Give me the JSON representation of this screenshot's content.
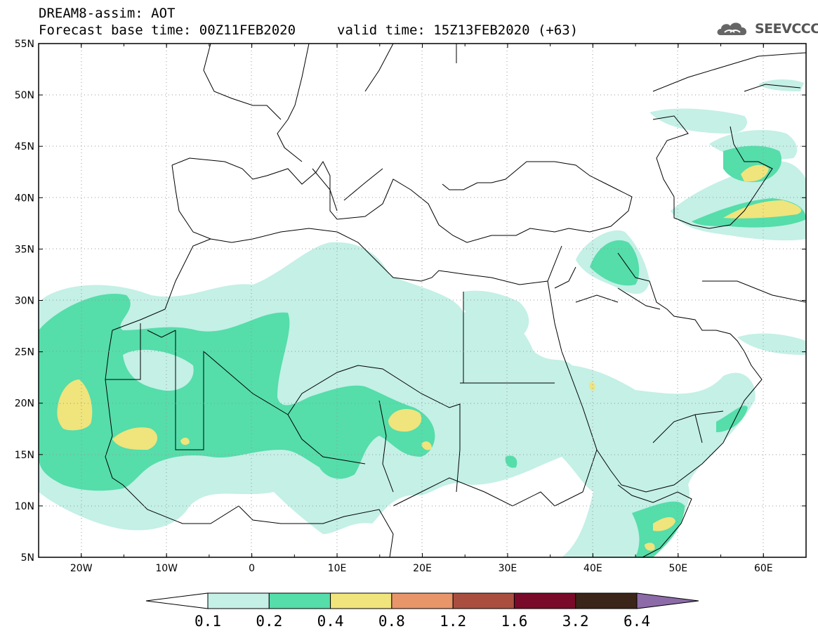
{
  "header": {
    "title_line1": "DREAM8-assim: AOT",
    "title_line2": "Forecast base time: 00Z11FEB2020",
    "valid_time": "valid time: 15Z13FEB2020 (+63)",
    "logo_text": "SEEVCCC"
  },
  "map": {
    "extent": {
      "lon_min": -25,
      "lon_max": 65,
      "lat_min": 5,
      "lat_max": 55
    },
    "lat_labels": [
      "55N",
      "50N",
      "45N",
      "40N",
      "35N",
      "30N",
      "25N",
      "20N",
      "15N",
      "10N",
      "5N"
    ],
    "lon_labels": [
      "20W",
      "10W",
      "0",
      "10E",
      "20E",
      "30E",
      "40E",
      "50E",
      "60E"
    ]
  },
  "colorbar": {
    "levels": [
      "0.1",
      "0.2",
      "0.4",
      "0.8",
      "1.2",
      "1.6",
      "3.2",
      "6.4"
    ],
    "colors": [
      "#c4f0e6",
      "#55ddaa",
      "#f0e47c",
      "#e8956a",
      "#aa4f40",
      "#7a0a2a",
      "#3b2418"
    ],
    "under_color": "#ffffff",
    "over_color": "#8c6ba8"
  }
}
